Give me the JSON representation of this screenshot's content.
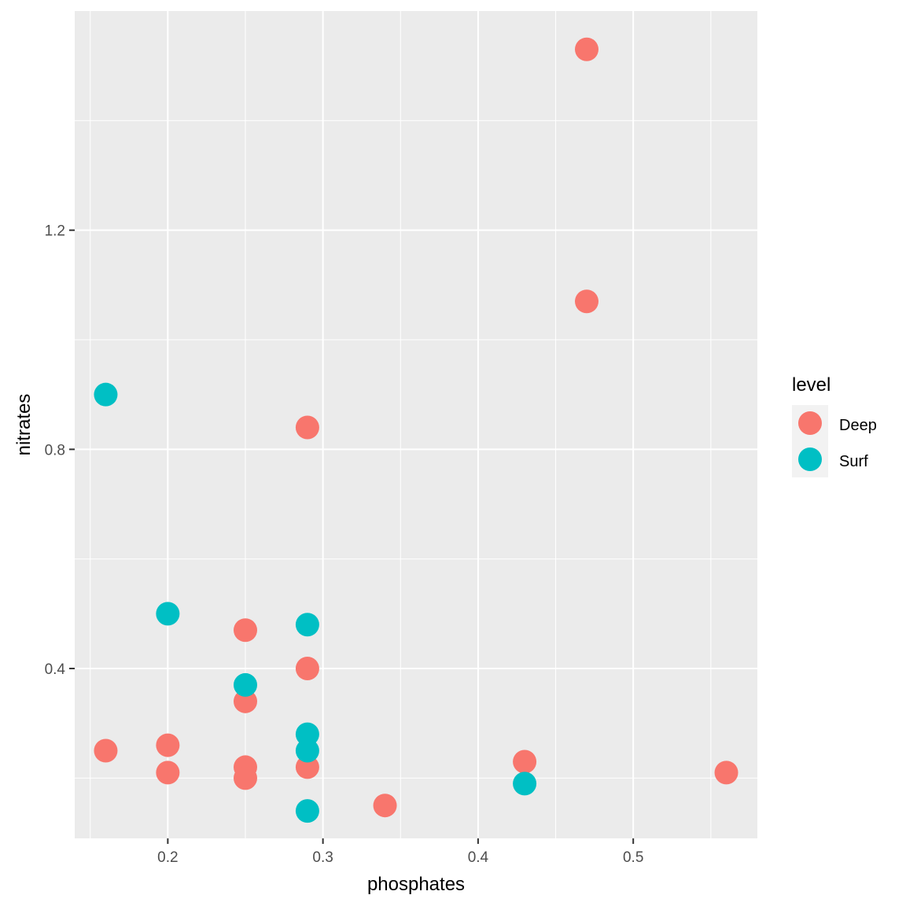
{
  "chart_data": {
    "type": "scatter",
    "title": "",
    "xlabel": "phosphates",
    "ylabel": "nitrates",
    "xlim": [
      0.14,
      0.58
    ],
    "ylim": [
      0.09,
      1.6
    ],
    "x_major_ticks": [
      0.2,
      0.3,
      0.4,
      0.5
    ],
    "x_tick_labels": [
      "0.2",
      "0.3",
      "0.4",
      "0.5"
    ],
    "x_minor_ticks": [
      0.15,
      0.25,
      0.35,
      0.45,
      0.55
    ],
    "y_major_ticks": [
      0.4,
      0.8,
      1.2
    ],
    "y_tick_labels": [
      "0.4",
      "0.8",
      "1.2"
    ],
    "y_minor_ticks": [
      0.2,
      0.6,
      1.0,
      1.4
    ],
    "grid": true,
    "legend": {
      "title": "level",
      "position": "right",
      "entries": [
        {
          "label": "Deep",
          "color": "#F8766D"
        },
        {
          "label": "Surf",
          "color": "#00BFC4"
        }
      ]
    },
    "series": [
      {
        "name": "Deep",
        "color": "#F8766D",
        "points": [
          {
            "x": 0.47,
            "y": 1.53
          },
          {
            "x": 0.47,
            "y": 1.07
          },
          {
            "x": 0.29,
            "y": 0.84
          },
          {
            "x": 0.25,
            "y": 0.47
          },
          {
            "x": 0.29,
            "y": 0.4
          },
          {
            "x": 0.25,
            "y": 0.34
          },
          {
            "x": 0.16,
            "y": 0.25
          },
          {
            "x": 0.2,
            "y": 0.26
          },
          {
            "x": 0.2,
            "y": 0.21
          },
          {
            "x": 0.25,
            "y": 0.22
          },
          {
            "x": 0.25,
            "y": 0.2
          },
          {
            "x": 0.29,
            "y": 0.22
          },
          {
            "x": 0.43,
            "y": 0.23
          },
          {
            "x": 0.56,
            "y": 0.21
          },
          {
            "x": 0.34,
            "y": 0.15
          }
        ]
      },
      {
        "name": "Surf",
        "color": "#00BFC4",
        "points": [
          {
            "x": 0.16,
            "y": 0.9
          },
          {
            "x": 0.2,
            "y": 0.5
          },
          {
            "x": 0.29,
            "y": 0.48
          },
          {
            "x": 0.25,
            "y": 0.37
          },
          {
            "x": 0.29,
            "y": 0.28
          },
          {
            "x": 0.29,
            "y": 0.25
          },
          {
            "x": 0.43,
            "y": 0.19
          },
          {
            "x": 0.29,
            "y": 0.14
          }
        ]
      }
    ]
  }
}
